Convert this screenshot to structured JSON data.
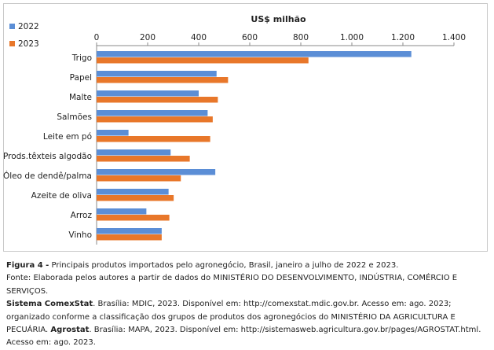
{
  "chart_data": {
    "type": "bar",
    "orientation": "horizontal",
    "xlabel": "US$ milhão",
    "xlim": [
      0,
      1400
    ],
    "ticks": [
      0,
      200,
      400,
      600,
      800,
      1000,
      1200,
      1400
    ],
    "tick_labels": [
      "0",
      "200",
      "400",
      "600",
      "800",
      "1.000",
      "1.200",
      "1.400"
    ],
    "categories": [
      "Trigo",
      "Papel",
      "Malte",
      "Salmões",
      "Leite em pó",
      "Prods.têxteis algodão",
      "Óleo de dendê/palma",
      "Azeite de oliva",
      "Arroz",
      "Vinho"
    ],
    "series": [
      {
        "name": "2022",
        "color": "#5b8ed6",
        "values": [
          1233,
          470,
          400,
          435,
          125,
          290,
          465,
          282,
          195,
          255
        ]
      },
      {
        "name": "2023",
        "color": "#e8772a",
        "values": [
          830,
          515,
          475,
          455,
          445,
          365,
          330,
          302,
          285,
          255
        ]
      }
    ],
    "legend_position": "top-left",
    "grid": false
  },
  "caption": {
    "figure_label": "Figura 4 -",
    "figure_text": " Principais produtos importados pelo agronegócio, Brasil, janeiro a julho de 2022 e 2023.",
    "source_prefix": "Fonte: Elaborada pelos autores a partir de dados do MINISTÉRIO DO DESENVOLVIMENTO, INDÚSTRIA, COMÉRCIO E SERVIÇOS.",
    "source_bold1": "Sistema ComexStat",
    "source_mid1": ". Brasília: MDIC, 2023. Disponível em: http://comexstat.mdic.gov.br. Acesso em: ago. 2023; organizado conforme a classificação dos grupos de produtos dos agronegócios do MINISTÉRIO DA AGRICULTURA E PECUÁRIA.",
    "source_bold2": "Agrostat",
    "source_end": ". Brasília: MAPA, 2023. Disponível em: http://sistemasweb.agricultura.gov.br/pages/AGROSTAT.html. Acesso em: ago. 2023."
  }
}
